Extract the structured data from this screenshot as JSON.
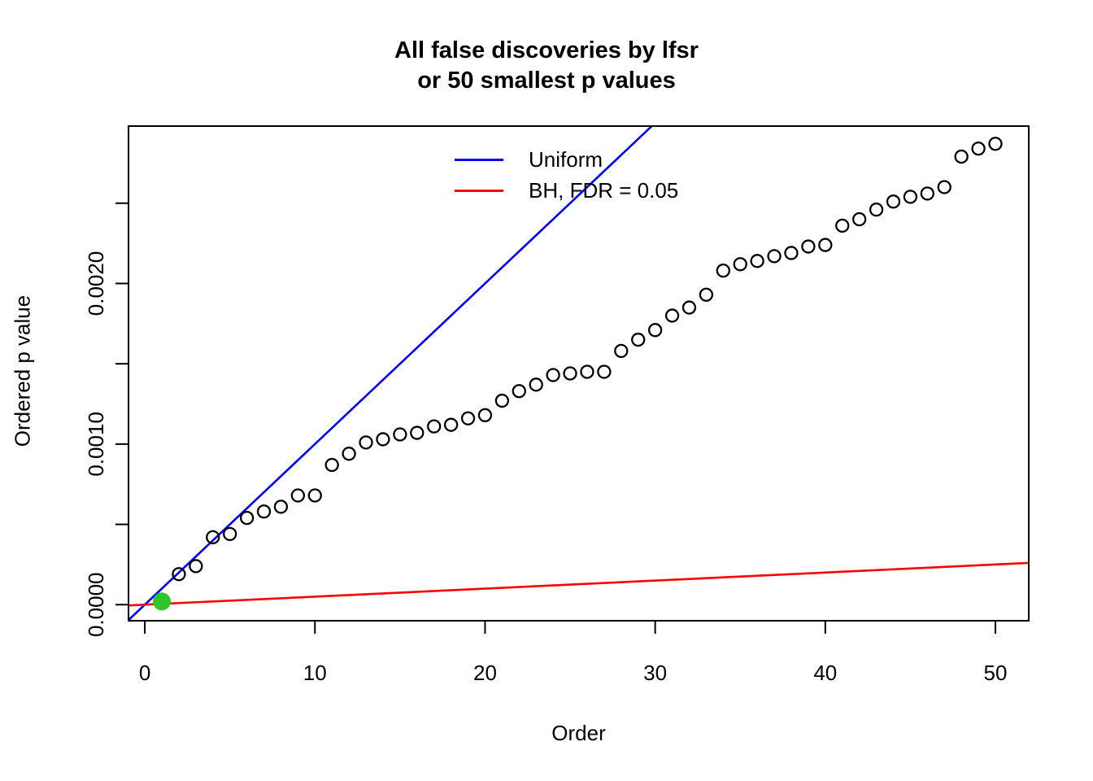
{
  "figure": {
    "title_line1": "All false discoveries by lfsr",
    "title_line2": "or 50 smallest p values",
    "x_axis_label": "Order",
    "y_axis_label": "Ordered p value"
  },
  "legend": {
    "items": [
      {
        "label": "Uniform",
        "color": "#0000FF"
      },
      {
        "label": "BH, FDR = 0.05",
        "color": "#FF0000"
      }
    ]
  },
  "colors": {
    "points": "#000000",
    "highlight": "#2DC72D",
    "uniform_line": "#0000FF",
    "bh_line": "#FF0000",
    "axis": "#000000",
    "background": "#FFFFFF"
  },
  "chart_data": {
    "type": "scatter",
    "title": "All false discoveries by lfsr\nor 50 smallest p values",
    "xlabel": "Order",
    "ylabel": "Ordered p value",
    "xlim": [
      -0.96,
      51.96
    ],
    "ylim": [
      -0.0001,
      0.00298
    ],
    "grid": false,
    "legend_position": "top-center-inside",
    "x_ticks": [
      {
        "v": 0,
        "label": "0"
      },
      {
        "v": 10,
        "label": "10"
      },
      {
        "v": 20,
        "label": "20"
      },
      {
        "v": 30,
        "label": "30"
      },
      {
        "v": 40,
        "label": "40"
      },
      {
        "v": 50,
        "label": "50"
      }
    ],
    "y_ticks": [
      {
        "v": 0.0,
        "label": "0.0000"
      },
      {
        "v": 0.0005,
        "label": ""
      },
      {
        "v": 0.001,
        "label": "0.0010"
      },
      {
        "v": 0.0015,
        "label": ""
      },
      {
        "v": 0.002,
        "label": "0.0020"
      },
      {
        "v": 0.0025,
        "label": ""
      }
    ],
    "points": {
      "x": [
        1,
        2,
        3,
        4,
        5,
        6,
        7,
        8,
        9,
        10,
        11,
        12,
        13,
        14,
        15,
        16,
        17,
        18,
        19,
        20,
        21,
        22,
        23,
        24,
        25,
        26,
        27,
        28,
        29,
        30,
        31,
        32,
        33,
        34,
        35,
        36,
        37,
        38,
        39,
        40,
        41,
        42,
        43,
        44,
        45,
        46,
        47,
        48,
        49,
        50
      ],
      "y": [
        2e-05,
        0.00019,
        0.00024,
        0.00042,
        0.00044,
        0.00054,
        0.00058,
        0.00061,
        0.00068,
        0.00068,
        0.00087,
        0.00094,
        0.00101,
        0.00103,
        0.00106,
        0.00107,
        0.00111,
        0.00112,
        0.00116,
        0.00118,
        0.00127,
        0.00133,
        0.00137,
        0.00143,
        0.00144,
        0.00145,
        0.00145,
        0.00158,
        0.00165,
        0.00171,
        0.0018,
        0.00185,
        0.00193,
        0.00208,
        0.00212,
        0.00214,
        0.00217,
        0.00219,
        0.00223,
        0.00224,
        0.00236,
        0.0024,
        0.00246,
        0.00251,
        0.00254,
        0.00256,
        0.0026,
        0.00279,
        0.00284,
        0.00287
      ],
      "marker": "open-circle"
    },
    "highlight_point": {
      "x": 1,
      "y": 2e-05,
      "marker": "filled-circle"
    },
    "lines": [
      {
        "name": "Uniform",
        "slope": 0.0001,
        "intercept": 0
      },
      {
        "name": "BH, FDR = 0.05",
        "slope": 5e-06,
        "intercept": 0
      }
    ]
  }
}
